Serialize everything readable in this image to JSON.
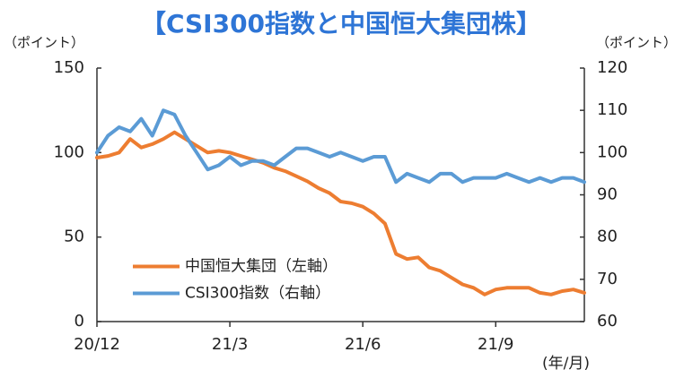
{
  "chart_data": {
    "type": "line",
    "title": "【CSI300指数と中国恒大集団株】",
    "y_label": "（ポイント）",
    "y2_label": "（ポイント）",
    "x_label": "(年/月)",
    "x": [
      0,
      0.25,
      0.5,
      0.75,
      1,
      1.25,
      1.5,
      1.75,
      2,
      2.25,
      2.5,
      2.75,
      3,
      3.25,
      3.5,
      3.75,
      4,
      4.25,
      4.5,
      4.75,
      5,
      5.25,
      5.5,
      5.75,
      6,
      6.25,
      6.5,
      6.75,
      7,
      7.25,
      7.5,
      7.75,
      8,
      8.25,
      8.5,
      8.75,
      9,
      9.25,
      9.5,
      9.75,
      10,
      10.25,
      10.5,
      10.75,
      11
    ],
    "xlim": [
      0,
      11
    ],
    "xticks": [
      {
        "value": 0,
        "label": "20/12"
      },
      {
        "value": 3,
        "label": "21/3"
      },
      {
        "value": 6,
        "label": "21/6"
      },
      {
        "value": 9,
        "label": "21/9"
      }
    ],
    "ylim": [
      0,
      150
    ],
    "yticks": [
      0,
      50,
      100,
      150
    ],
    "y2lim": [
      60,
      120
    ],
    "y2ticks": [
      60,
      70,
      80,
      90,
      100,
      110,
      120
    ],
    "legend": "center left",
    "series": [
      {
        "name": "中国恒大集団（左軸）",
        "color": "#ed7d31",
        "axis": "y",
        "values": [
          97,
          98,
          100,
          108,
          103,
          105,
          108,
          112,
          108,
          104,
          100,
          101,
          100,
          98,
          96,
          94,
          91,
          89,
          86,
          83,
          79,
          76,
          71,
          70,
          68,
          64,
          58,
          40,
          37,
          38,
          32,
          30,
          26,
          22,
          20,
          16,
          19,
          20,
          20,
          20,
          17,
          16,
          18,
          19,
          17
        ]
      },
      {
        "name": "CSI300指数（右軸）",
        "color": "#5b9bd5",
        "axis": "y2",
        "values": [
          100,
          104,
          106,
          105,
          108,
          104,
          110,
          109,
          104,
          100,
          96,
          97,
          99,
          97,
          98,
          98,
          97,
          99,
          101,
          101,
          100,
          99,
          100,
          99,
          98,
          99,
          99,
          93,
          95,
          94,
          93,
          95,
          95,
          93,
          94,
          94,
          94,
          95,
          94,
          93,
          94,
          93,
          94,
          94,
          93
        ]
      }
    ]
  }
}
